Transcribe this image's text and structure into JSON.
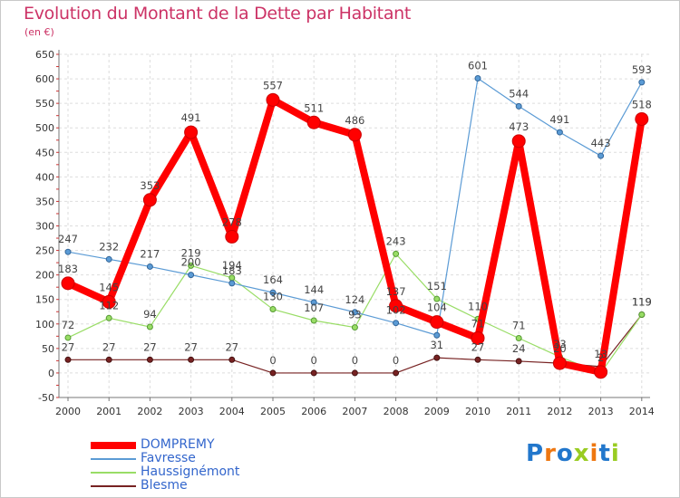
{
  "header": {
    "title": "Evolution du Montant de la Dette par Habitant",
    "subtitle": "(en €)"
  },
  "logo": {
    "text": "Proxiti"
  },
  "chart_data": {
    "type": "line",
    "x": [
      "2000",
      "2001",
      "2002",
      "2003",
      "2004",
      "2005",
      "2006",
      "2007",
      "2008",
      "2009",
      "2010",
      "2011",
      "2012",
      "2013",
      "2014"
    ],
    "yticks": [
      "-50",
      "0",
      "50",
      "100",
      "150",
      "200",
      "250",
      "300",
      "350",
      "400",
      "450",
      "500",
      "550",
      "600",
      "650"
    ],
    "ylim": [
      -50,
      650
    ],
    "grid": true,
    "legend_position": "bottom-left",
    "series": [
      {
        "name": "DOMPREMY",
        "color": "#ff0000",
        "values": [
          183,
          145,
          353,
          491,
          278,
          557,
          511,
          486,
          137,
          104,
          71,
          473,
          20,
          2,
          518
        ],
        "labels": [
          "183",
          "145",
          "353",
          "491",
          "278",
          "557",
          "511",
          "486",
          "137",
          "104",
          "71",
          "473",
          "20",
          "2",
          "518"
        ]
      },
      {
        "name": "Favresse",
        "color": "#5b9bd5",
        "values": [
          247,
          232,
          217,
          200,
          183,
          164,
          144,
          124,
          102,
          77,
          601,
          544,
          491,
          443,
          593
        ],
        "labels": [
          "247",
          "232",
          "217",
          "200",
          "183",
          "164",
          "144",
          "124",
          "102",
          "",
          "601",
          "544",
          "491",
          "443",
          "593"
        ]
      },
      {
        "name": "Haussignémont",
        "color": "#99dd66",
        "values": [
          72,
          112,
          94,
          219,
          194,
          130,
          107,
          93,
          243,
          151,
          110,
          71,
          33,
          0,
          119
        ],
        "labels": [
          "72",
          "112",
          "94",
          "219",
          "194",
          "130",
          "107",
          "93",
          "243",
          "151",
          "110",
          "71",
          "33",
          "",
          "119"
        ]
      },
      {
        "name": "Blesme",
        "color": "#772222",
        "values": [
          27,
          27,
          27,
          27,
          27,
          0,
          0,
          0,
          0,
          31,
          27,
          24,
          20,
          13,
          119
        ],
        "labels": [
          "27",
          "27",
          "27",
          "27",
          "27",
          "0",
          "0",
          "0",
          "0",
          "31",
          "27",
          "24",
          "",
          "13",
          "119"
        ]
      }
    ]
  }
}
